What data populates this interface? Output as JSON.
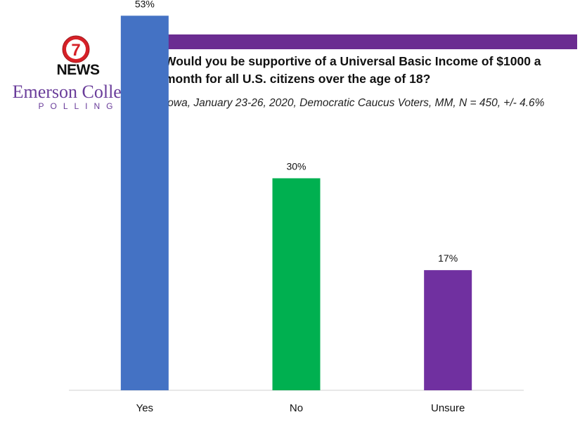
{
  "brand": {
    "badge_number": "7",
    "news": "NEWS",
    "college": "Emerson College",
    "polling": "POLLING",
    "colors": {
      "badge_red": "#d62027",
      "purple": "#6b2c91",
      "text_purple": "#6a3d9a"
    }
  },
  "header": {
    "title": "Would you be supportive of a Universal Basic Income of $1000 a month for all U.S. citizens over the age of 18?",
    "subtitle": "Iowa, January 23-26, 2020, Democratic Caucus Voters, MM, N = 450, +/- 4.6%"
  },
  "chart_data": {
    "type": "bar",
    "categories": [
      "Yes",
      "No",
      "Unsure"
    ],
    "values": [
      53,
      30,
      17
    ],
    "value_labels": [
      "53%",
      "30%",
      "17%"
    ],
    "colors": [
      "#4472c4",
      "#00b050",
      "#7030a0"
    ],
    "ylim": [
      0,
      60
    ],
    "grid": false,
    "legend": "none"
  }
}
